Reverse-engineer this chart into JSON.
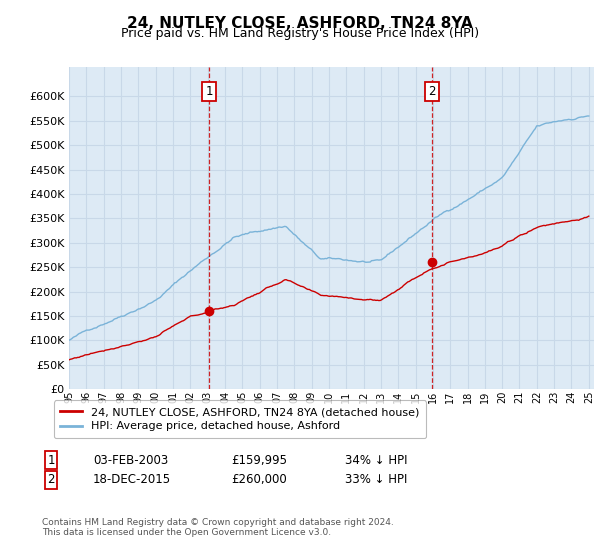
{
  "title": "24, NUTLEY CLOSE, ASHFORD, TN24 8YA",
  "subtitle": "Price paid vs. HM Land Registry's House Price Index (HPI)",
  "ylim": [
    0,
    660000
  ],
  "yticks": [
    0,
    50000,
    100000,
    150000,
    200000,
    250000,
    300000,
    350000,
    400000,
    450000,
    500000,
    550000,
    600000
  ],
  "xlim_start": 1995.0,
  "xlim_end": 2025.3,
  "hpi_color": "#7ab3d8",
  "price_color": "#cc0000",
  "marker1_x": 2003.09,
  "marker1_y": 159995,
  "marker2_x": 2015.96,
  "marker2_y": 260000,
  "dashed_color": "#cc0000",
  "bg_chart": "#ddeaf5",
  "grid_color": "#c8d8e8",
  "legend_label_price": "24, NUTLEY CLOSE, ASHFORD, TN24 8YA (detached house)",
  "legend_label_hpi": "HPI: Average price, detached house, Ashford",
  "table_row1": [
    "1",
    "03-FEB-2003",
    "£159,995",
    "34% ↓ HPI"
  ],
  "table_row2": [
    "2",
    "18-DEC-2015",
    "£260,000",
    "33% ↓ HPI"
  ],
  "footer": "Contains HM Land Registry data © Crown copyright and database right 2024.\nThis data is licensed under the Open Government Licence v3.0.",
  "title_fontsize": 11,
  "subtitle_fontsize": 9,
  "axis_fontsize": 7.5
}
